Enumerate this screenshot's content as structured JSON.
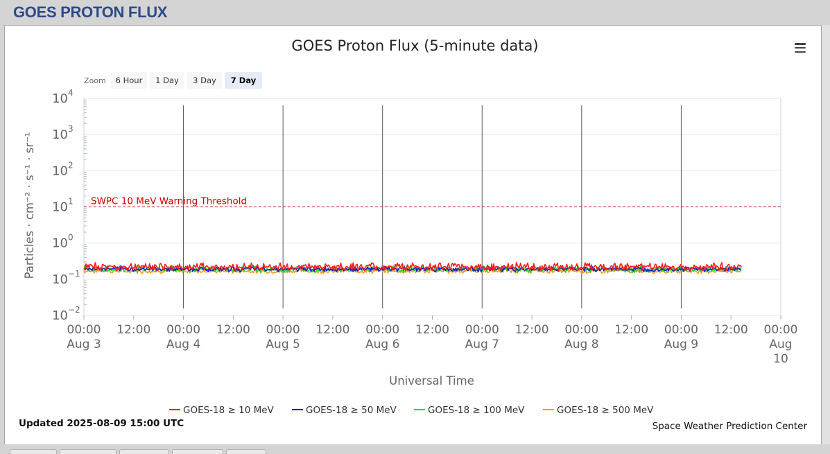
{
  "page": {
    "title": "GOES PROTON FLUX"
  },
  "zoom": {
    "label": "Zoom",
    "buttons": [
      "6 Hour",
      "1 Day",
      "3 Day",
      "7 Day"
    ],
    "active": "7 Day"
  },
  "footer": {
    "updated": "Updated 2025-08-09 15:00 UTC",
    "credit": "Space Weather Prediction Center"
  },
  "chart_data": {
    "type": "line",
    "title": "GOES Proton Flux (5-minute data)",
    "xlabel": "Universal Time",
    "ylabel": "Particles · cm⁻² · s⁻¹ · sr⁻¹",
    "yscale": "log",
    "ylim": [
      0.01,
      10000
    ],
    "xlim": [
      "2025-08-03 00:00",
      "2025-08-10 00:00"
    ],
    "y_ticks": [
      {
        "base": "10",
        "exp": "4"
      },
      {
        "base": "10",
        "exp": "3"
      },
      {
        "base": "10",
        "exp": "2"
      },
      {
        "base": "10",
        "exp": "1"
      },
      {
        "base": "10",
        "exp": "0"
      },
      {
        "base": "10",
        "exp": "−1"
      },
      {
        "base": "10",
        "exp": "−2"
      }
    ],
    "x_ticks": [
      {
        "time": "00:00",
        "date": "Aug 3"
      },
      {
        "time": "12:00",
        "date": ""
      },
      {
        "time": "00:00",
        "date": "Aug 4"
      },
      {
        "time": "12:00",
        "date": ""
      },
      {
        "time": "00:00",
        "date": "Aug 5"
      },
      {
        "time": "12:00",
        "date": ""
      },
      {
        "time": "00:00",
        "date": "Aug 6"
      },
      {
        "time": "12:00",
        "date": ""
      },
      {
        "time": "00:00",
        "date": "Aug 7"
      },
      {
        "time": "12:00",
        "date": ""
      },
      {
        "time": "00:00",
        "date": "Aug 8"
      },
      {
        "time": "12:00",
        "date": ""
      },
      {
        "time": "00:00",
        "date": "Aug 9"
      },
      {
        "time": "12:00",
        "date": ""
      },
      {
        "time": "00:00",
        "date": "Aug 10"
      }
    ],
    "grid": true,
    "legend_position": "bottom-center",
    "threshold": {
      "label": "SWPC 10 MeV Warning Threshold",
      "value": 10,
      "color": "#cc0000",
      "style": "dashed"
    },
    "data_end": "2025-08-09 14:30",
    "series": [
      {
        "name": "GOES-18 ≥ 10 MeV",
        "color": "#ff1a1a",
        "typical_value": 0.22,
        "min": 0.17,
        "max": 0.33
      },
      {
        "name": "GOES-18 ≥ 50 MeV",
        "color": "#1a1acc",
        "typical_value": 0.19,
        "min": 0.16,
        "max": 0.24
      },
      {
        "name": "GOES-18 ≥ 100 MeV",
        "color": "#22dd22",
        "typical_value": 0.19,
        "min": 0.15,
        "max": 0.26
      },
      {
        "name": "GOES-18 ≥ 500 MeV",
        "color": "#ff9a1a",
        "typical_value": 0.17,
        "min": 0.14,
        "max": 0.21
      }
    ]
  }
}
